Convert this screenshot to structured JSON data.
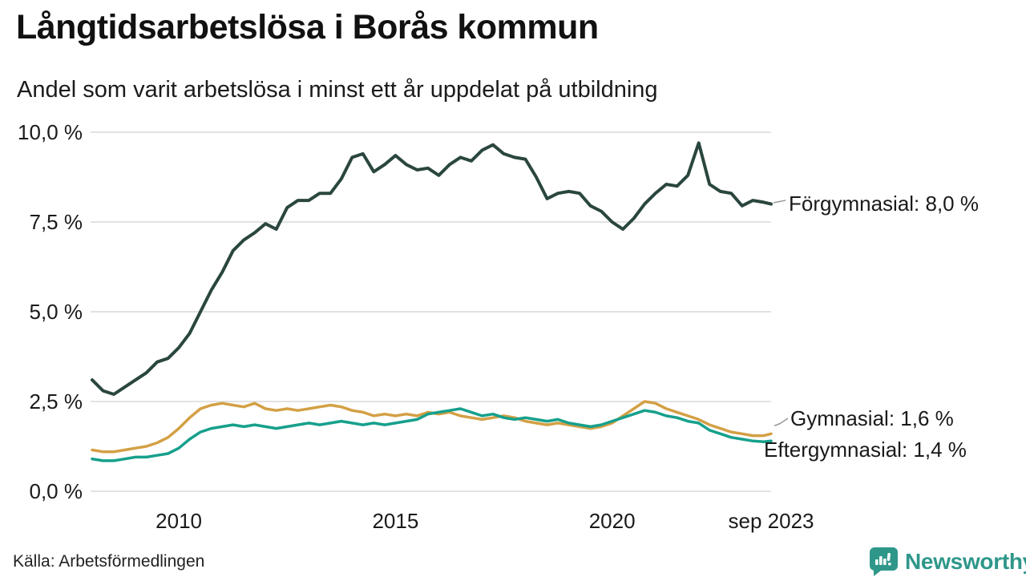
{
  "chart_data": {
    "type": "line",
    "title": "Långtidsarbetslösa i Borås kommun",
    "subtitle": "Andel som varit arbetslösa i minst ett år uppdelat på utbildning",
    "grid": "horizontal",
    "legend_position": "direct-labels-right",
    "xlim": [
      2008.0,
      2023.67
    ],
    "ylim": [
      0,
      10
    ],
    "yticks": {
      "values": [
        0,
        2.5,
        5,
        7.5,
        10
      ],
      "labels": [
        "0,0 %",
        "2,5 %",
        "5,0 %",
        "7,5 %",
        "10,0 %"
      ]
    },
    "xticks": {
      "values": [
        2010,
        2015,
        2020,
        2023.67
      ],
      "labels": [
        "2010",
        "2015",
        "2020",
        "sep 2023"
      ]
    },
    "x": [
      2008.0,
      2008.25,
      2008.5,
      2008.75,
      2009.0,
      2009.25,
      2009.5,
      2009.75,
      2010.0,
      2010.25,
      2010.5,
      2010.75,
      2011.0,
      2011.25,
      2011.5,
      2011.75,
      2012.0,
      2012.25,
      2012.5,
      2012.75,
      2013.0,
      2013.25,
      2013.5,
      2013.75,
      2014.0,
      2014.25,
      2014.5,
      2014.75,
      2015.0,
      2015.25,
      2015.5,
      2015.75,
      2016.0,
      2016.25,
      2016.5,
      2016.75,
      2017.0,
      2017.25,
      2017.5,
      2017.75,
      2018.0,
      2018.25,
      2018.5,
      2018.75,
      2019.0,
      2019.25,
      2019.5,
      2019.75,
      2020.0,
      2020.25,
      2020.5,
      2020.75,
      2021.0,
      2021.25,
      2021.5,
      2021.75,
      2022.0,
      2022.25,
      2022.5,
      2022.75,
      2023.0,
      2023.25,
      2023.5,
      2023.67
    ],
    "series": [
      {
        "name": "Förgymnasial",
        "color": "#2a463f",
        "stroke_width": 4,
        "end_value": 8.0,
        "end_label": "Förgymnasial: 8,0 %",
        "values": [
          3.1,
          2.8,
          2.7,
          2.9,
          3.1,
          3.3,
          3.6,
          3.7,
          4.0,
          4.4,
          5.0,
          5.6,
          6.1,
          6.7,
          7.0,
          7.2,
          7.45,
          7.3,
          7.9,
          8.1,
          8.1,
          8.3,
          8.3,
          8.7,
          9.3,
          9.4,
          8.9,
          9.1,
          9.35,
          9.1,
          8.95,
          9.0,
          8.8,
          9.1,
          9.3,
          9.2,
          9.5,
          9.65,
          9.4,
          9.3,
          9.25,
          8.75,
          8.15,
          8.3,
          8.35,
          8.3,
          7.95,
          7.8,
          7.5,
          7.3,
          7.6,
          8.0,
          8.3,
          8.55,
          8.5,
          8.8,
          9.7,
          8.55,
          8.35,
          8.3,
          7.95,
          8.1,
          8.05,
          8.0
        ]
      },
      {
        "name": "Gymnasial",
        "color": "#d3a045",
        "stroke_width": 3.5,
        "end_value": 1.6,
        "end_label": "Gymnasial: 1,6 %",
        "values": [
          1.15,
          1.1,
          1.1,
          1.15,
          1.2,
          1.25,
          1.35,
          1.5,
          1.75,
          2.05,
          2.3,
          2.4,
          2.45,
          2.4,
          2.35,
          2.45,
          2.3,
          2.25,
          2.3,
          2.25,
          2.3,
          2.35,
          2.4,
          2.35,
          2.25,
          2.2,
          2.1,
          2.15,
          2.1,
          2.15,
          2.1,
          2.2,
          2.15,
          2.2,
          2.1,
          2.05,
          2.0,
          2.05,
          2.1,
          2.05,
          1.95,
          1.9,
          1.85,
          1.9,
          1.85,
          1.8,
          1.75,
          1.8,
          1.9,
          2.1,
          2.3,
          2.5,
          2.45,
          2.3,
          2.2,
          2.1,
          2.0,
          1.85,
          1.75,
          1.65,
          1.6,
          1.55,
          1.55,
          1.6
        ]
      },
      {
        "name": "Eftergymnasial",
        "color": "#16a08c",
        "stroke_width": 3.5,
        "end_value": 1.4,
        "end_label": "Eftergymnasial: 1,4 %",
        "values": [
          0.9,
          0.85,
          0.85,
          0.9,
          0.95,
          0.95,
          1.0,
          1.05,
          1.2,
          1.45,
          1.65,
          1.75,
          1.8,
          1.85,
          1.8,
          1.85,
          1.8,
          1.75,
          1.8,
          1.85,
          1.9,
          1.85,
          1.9,
          1.95,
          1.9,
          1.85,
          1.9,
          1.85,
          1.9,
          1.95,
          2.0,
          2.15,
          2.2,
          2.25,
          2.3,
          2.2,
          2.1,
          2.15,
          2.05,
          2.0,
          2.05,
          2.0,
          1.95,
          2.0,
          1.9,
          1.85,
          1.8,
          1.85,
          1.95,
          2.05,
          2.15,
          2.25,
          2.2,
          2.1,
          2.05,
          1.95,
          1.9,
          1.7,
          1.6,
          1.5,
          1.45,
          1.4,
          1.38,
          1.4
        ]
      }
    ]
  },
  "footer": {
    "source": "Källa: Arbetsförmedlingen"
  },
  "branding": {
    "name": "Newsworthy",
    "color": "#2e978a",
    "icon": "newsworthy-speech-bubble-bars-icon"
  }
}
